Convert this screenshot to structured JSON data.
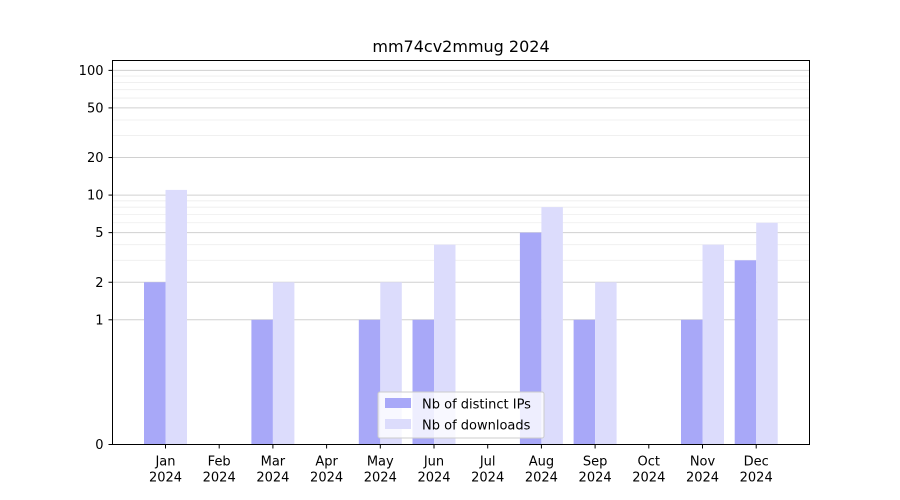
{
  "chart_data": {
    "type": "bar",
    "title": "mm74cv2mmug 2024",
    "xlabel": "",
    "ylabel": "",
    "y_scale": "symlog",
    "ylim": [
      0,
      120
    ],
    "yticks": [
      0,
      1,
      2,
      5,
      10,
      20,
      50,
      100
    ],
    "categories": [
      "Jan\n2024",
      "Feb\n2024",
      "Mar\n2024",
      "Apr\n2024",
      "May\n2024",
      "Jun\n2024",
      "Jul\n2024",
      "Aug\n2024",
      "Sep\n2024",
      "Oct\n2024",
      "Nov\n2024",
      "Dec\n2024"
    ],
    "series": [
      {
        "name": "Nb of distinct IPs",
        "color": "#a8a8f8",
        "values": [
          2,
          0,
          1,
          0,
          1,
          1,
          0,
          5,
          1,
          0,
          1,
          3
        ]
      },
      {
        "name": "Nb of downloads",
        "color": "#dcdcfc",
        "values": [
          11,
          0,
          2,
          0,
          2,
          4,
          0,
          8,
          2,
          0,
          4,
          6
        ]
      }
    ],
    "grid": true,
    "legend": "bottom-center"
  }
}
